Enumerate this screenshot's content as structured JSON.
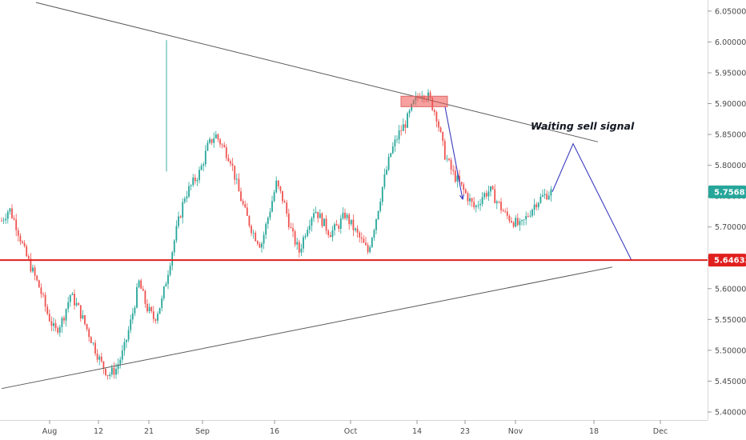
{
  "chart_data": {
    "type": "candlestick",
    "x_tick_labels": [
      "Aug",
      "12",
      "21",
      "Sep",
      "16",
      "Oct",
      "14",
      "23",
      "Nov",
      "18",
      "Dec"
    ],
    "y_tick_labels": [
      "6.05000",
      "6.00000",
      "5.95000",
      "5.90000",
      "5.85000",
      "5.80000",
      "5.75000",
      "5.70000",
      "5.65000",
      "5.60000",
      "5.55000",
      "5.50000",
      "5.45000",
      "5.40000"
    ],
    "y_ticks": [
      6.05,
      6.0,
      5.95,
      5.9,
      5.85,
      5.8,
      5.75,
      5.7,
      5.65,
      5.6,
      5.55,
      5.5,
      5.45,
      5.4
    ],
    "ylim": [
      5.387,
      6.068
    ],
    "current_price": {
      "label": "5.75681",
      "value": 5.75681,
      "color": "#26a69a"
    },
    "support_level": {
      "label": "5.64633",
      "value": 5.64633,
      "color": "#e0201e"
    },
    "annotation": "Waiting sell signal",
    "series": [
      {
        "role": "candles",
        "up_color": "#26a69a",
        "down_color": "#ef5350",
        "path": [
          5.71,
          5.73,
          5.7,
          5.66,
          5.63,
          5.6,
          5.56,
          5.53,
          5.55,
          5.59,
          5.57,
          5.54,
          5.51,
          5.48,
          5.46,
          5.47,
          5.5,
          5.55,
          5.61,
          5.57,
          5.55,
          5.58,
          5.64,
          5.7,
          5.75,
          5.77,
          5.79,
          5.83,
          5.85,
          5.83,
          5.81,
          5.76,
          5.72,
          5.69,
          5.67,
          5.72,
          5.77,
          5.74,
          5.69,
          5.66,
          5.7,
          5.73,
          5.71,
          5.69,
          5.7,
          5.72,
          5.7,
          5.68,
          5.66,
          5.71,
          5.77,
          5.82,
          5.85,
          5.87,
          5.9,
          5.92,
          5.91,
          5.88,
          5.82,
          5.79,
          5.77,
          5.75,
          5.73,
          5.75,
          5.76,
          5.74,
          5.72,
          5.71,
          5.7,
          5.72,
          5.74,
          5.75,
          5.757
        ]
      },
      {
        "role": "trendline-upper",
        "color": "#5a5a5a",
        "points": [
          [
            0.0,
            6.064
          ],
          [
            1.0,
            5.838
          ]
        ]
      },
      {
        "role": "trendline-lower",
        "color": "#5a5a5a",
        "points": [
          [
            0.0,
            5.438
          ],
          [
            1.0,
            5.635
          ]
        ]
      },
      {
        "role": "projection",
        "color": "#3b3bbf",
        "points": [
          [
            5.757
          ],
          [
            5.835
          ],
          [
            5.646
          ]
        ]
      },
      {
        "role": "sell-arrow",
        "color": "#3b3bbf",
        "points": [
          [
            5.895
          ],
          [
            5.745
          ]
        ]
      }
    ]
  }
}
